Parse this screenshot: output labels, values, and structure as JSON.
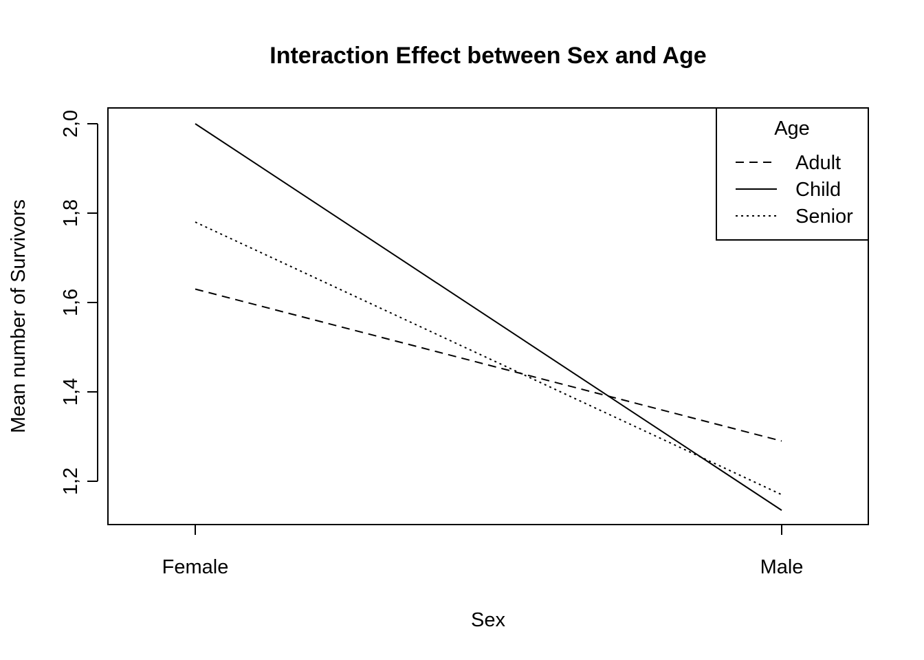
{
  "chart_data": {
    "type": "line",
    "title": "Interaction Effect between Sex and Age",
    "xlabel": "Sex",
    "ylabel": "Mean number of Survivors",
    "categories": [
      "Female",
      "Male"
    ],
    "y_ticks": [
      "1,2",
      "1,4",
      "1,6",
      "1,8",
      "2,0"
    ],
    "y_tick_values": [
      1.2,
      1.4,
      1.6,
      1.8,
      2.0
    ],
    "ylim": [
      1.1,
      2.03
    ],
    "legend": {
      "title": "Age",
      "position": "top-right"
    },
    "series": [
      {
        "name": "Adult",
        "values": [
          1.63,
          1.29
        ],
        "line_style": "dashed"
      },
      {
        "name": "Child",
        "values": [
          2.0,
          1.135
        ],
        "line_style": "solid"
      },
      {
        "name": "Senior",
        "values": [
          1.78,
          1.17
        ],
        "line_style": "dotted"
      }
    ],
    "color": "#000000",
    "grid": false
  }
}
